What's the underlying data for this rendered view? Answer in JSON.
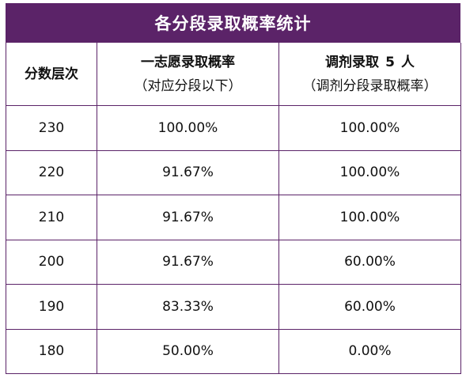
{
  "title": "各分段录取概率统计",
  "headers": {
    "col1": "分数层次",
    "col2_line1": "一志愿录取概率",
    "col2_line2": "（对应分段以下）",
    "col3_line1_a": "调剂录取",
    "col3_line1_num": "5",
    "col3_line1_b": "人",
    "col3_line2": "（调剂分段录取概率）"
  },
  "rows": [
    {
      "score": "230",
      "first_choice": "100.00%",
      "adjust": "100.00%"
    },
    {
      "score": "220",
      "first_choice": "91.67%",
      "adjust": "100.00%"
    },
    {
      "score": "210",
      "first_choice": "91.67%",
      "adjust": "100.00%"
    },
    {
      "score": "200",
      "first_choice": "91.67%",
      "adjust": "60.00%"
    },
    {
      "score": "190",
      "first_choice": "83.33%",
      "adjust": "60.00%"
    },
    {
      "score": "180",
      "first_choice": "50.00%",
      "adjust": "0.00%"
    }
  ],
  "colors": {
    "header_bg": "#5b2368",
    "border": "#5b2368",
    "title_text": "#ffffff"
  }
}
